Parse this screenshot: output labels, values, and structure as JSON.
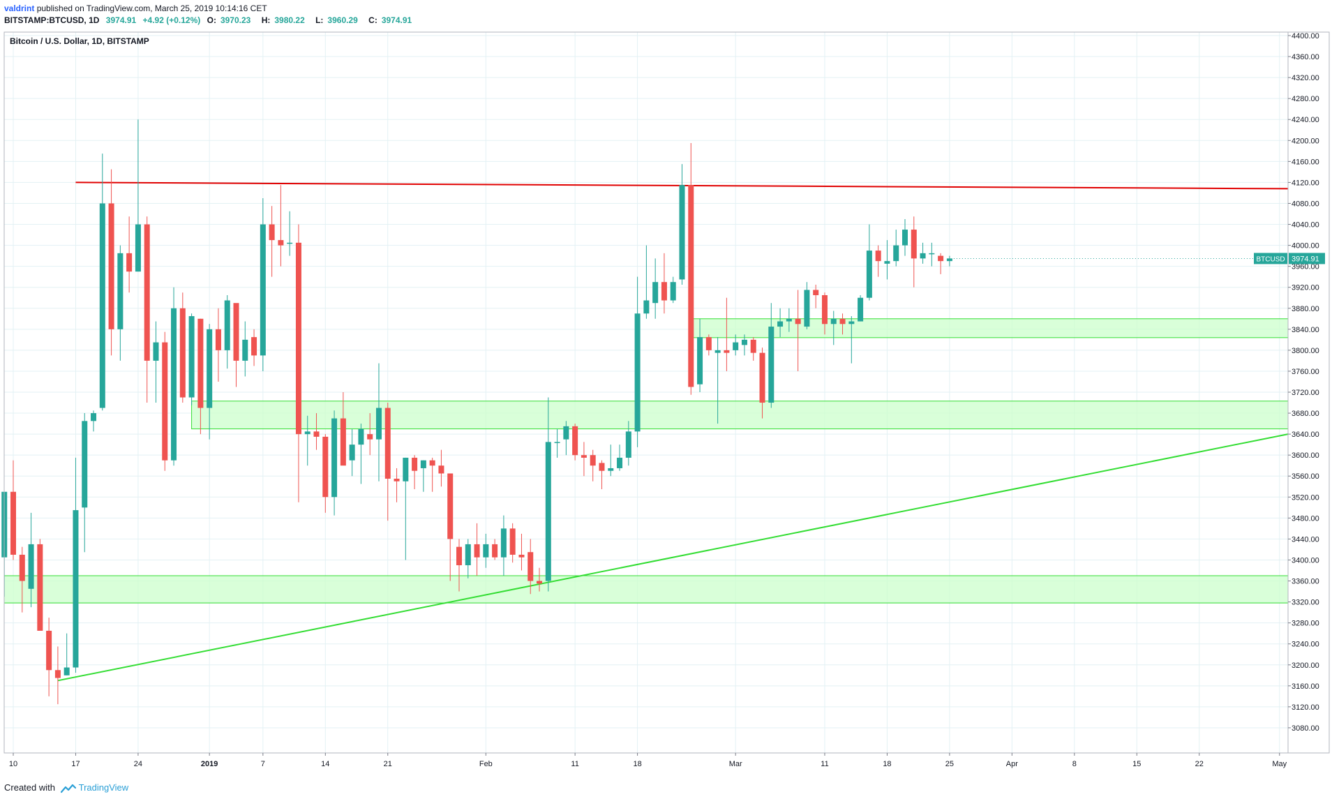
{
  "header": {
    "author": "valdrint",
    "published_text": "published on TradingView.com, March 25, 2019 10:14:16 CET",
    "symbol": "BITSTAMP:BTCUSD, 1D",
    "last_price": "3974.91",
    "change": "+4.92 (+0.12%)",
    "o_label": "O:",
    "o_value": "3970.23",
    "h_label": "H:",
    "h_value": "3980.22",
    "l_label": "L:",
    "l_value": "3960.29",
    "c_label": "C:",
    "c_value": "3974.91"
  },
  "chart_data": {
    "type": "candlestick",
    "title": "Bitcoin / U.S. Dollar, 1D, BITSTAMP",
    "ylim": [
      3040,
      4410
    ],
    "y_ticks": [
      "4400.00",
      "4360.00",
      "4320.00",
      "4280.00",
      "4240.00",
      "4200.00",
      "4160.00",
      "4120.00",
      "4080.00",
      "4040.00",
      "4000.00",
      "3960.00",
      "3920.00",
      "3880.00",
      "3840.00",
      "3800.00",
      "3760.00",
      "3720.00",
      "3680.00",
      "3640.00",
      "3600.00",
      "3560.00",
      "3520.00",
      "3480.00",
      "3440.00",
      "3400.00",
      "3360.00",
      "3320.00",
      "3280.00",
      "3240.00",
      "3200.00",
      "3160.00",
      "3120.00",
      "3080.00"
    ],
    "x_ticks": [
      {
        "label": "10",
        "date": "2018-12-10"
      },
      {
        "label": "17",
        "date": "2018-12-17"
      },
      {
        "label": "24",
        "date": "2018-12-24"
      },
      {
        "label": "2019",
        "date": "2019-01-01"
      },
      {
        "label": "7",
        "date": "2019-01-07"
      },
      {
        "label": "14",
        "date": "2019-01-14"
      },
      {
        "label": "21",
        "date": "2019-01-21"
      },
      {
        "label": "Feb",
        "date": "2019-02-01"
      },
      {
        "label": "11",
        "date": "2019-02-11"
      },
      {
        "label": "18",
        "date": "2019-02-18"
      },
      {
        "label": "Mar",
        "date": "2019-03-01"
      },
      {
        "label": "11",
        "date": "2019-03-11"
      },
      {
        "label": "18",
        "date": "2019-03-18"
      },
      {
        "label": "25",
        "date": "2019-03-25"
      },
      {
        "label": "Apr",
        "date": "2019-04-01"
      },
      {
        "label": "8",
        "date": "2019-04-08"
      },
      {
        "label": "15",
        "date": "2019-04-15"
      },
      {
        "label": "22",
        "date": "2019-04-22"
      },
      {
        "label": "May",
        "date": "2019-05-01"
      }
    ],
    "grid": true,
    "last_price_label": "BTCUSD",
    "last_price_value": "3974.91",
    "candles": [
      {
        "date": "2018-12-09",
        "o": 3405,
        "h": 3525,
        "l": 3330,
        "c": 3530
      },
      {
        "date": "2018-12-10",
        "o": 3530,
        "h": 3590,
        "l": 3400,
        "c": 3410
      },
      {
        "date": "2018-12-11",
        "o": 3410,
        "h": 3425,
        "l": 3300,
        "c": 3360
      },
      {
        "date": "2018-12-12",
        "o": 3345,
        "h": 3490,
        "l": 3310,
        "c": 3430
      },
      {
        "date": "2018-12-13",
        "o": 3430,
        "h": 3440,
        "l": 3270,
        "c": 3265
      },
      {
        "date": "2018-12-14",
        "o": 3265,
        "h": 3290,
        "l": 3140,
        "c": 3190
      },
      {
        "date": "2018-12-15",
        "o": 3190,
        "h": 3235,
        "l": 3125,
        "c": 3175
      },
      {
        "date": "2018-12-16",
        "o": 3180,
        "h": 3260,
        "l": 3180,
        "c": 3195
      },
      {
        "date": "2018-12-17",
        "o": 3195,
        "h": 3595,
        "l": 3185,
        "c": 3495
      },
      {
        "date": "2018-12-18",
        "o": 3500,
        "h": 3680,
        "l": 3415,
        "c": 3665
      },
      {
        "date": "2018-12-19",
        "o": 3665,
        "h": 3685,
        "l": 3645,
        "c": 3680
      },
      {
        "date": "2018-12-20",
        "o": 3690,
        "h": 4175,
        "l": 3685,
        "c": 4080
      },
      {
        "date": "2018-12-21",
        "o": 4080,
        "h": 4145,
        "l": 3790,
        "c": 3840
      },
      {
        "date": "2018-12-22",
        "o": 3840,
        "h": 4000,
        "l": 3780,
        "c": 3985
      },
      {
        "date": "2018-12-23",
        "o": 3985,
        "h": 4055,
        "l": 3910,
        "c": 3950
      },
      {
        "date": "2018-12-24",
        "o": 3950,
        "h": 4240,
        "l": 3950,
        "c": 4040
      },
      {
        "date": "2018-12-25",
        "o": 4040,
        "h": 4055,
        "l": 3700,
        "c": 3780
      },
      {
        "date": "2018-12-26",
        "o": 3780,
        "h": 3855,
        "l": 3700,
        "c": 3815
      },
      {
        "date": "2018-12-27",
        "o": 3815,
        "h": 3835,
        "l": 3570,
        "c": 3590
      },
      {
        "date": "2018-12-28",
        "o": 3590,
        "h": 3920,
        "l": 3580,
        "c": 3880
      },
      {
        "date": "2018-12-29",
        "o": 3880,
        "h": 3910,
        "l": 3700,
        "c": 3710
      },
      {
        "date": "2018-12-30",
        "o": 3710,
        "h": 3870,
        "l": 3695,
        "c": 3865
      },
      {
        "date": "2018-12-31",
        "o": 3860,
        "h": 3860,
        "l": 3640,
        "c": 3690
      },
      {
        "date": "2019-01-01",
        "o": 3690,
        "h": 3850,
        "l": 3630,
        "c": 3840
      },
      {
        "date": "2019-01-02",
        "o": 3840,
        "h": 3880,
        "l": 3740,
        "c": 3800
      },
      {
        "date": "2019-01-03",
        "o": 3800,
        "h": 3905,
        "l": 3765,
        "c": 3895
      },
      {
        "date": "2019-01-04",
        "o": 3890,
        "h": 3885,
        "l": 3730,
        "c": 3780
      },
      {
        "date": "2019-01-05",
        "o": 3780,
        "h": 3855,
        "l": 3750,
        "c": 3820
      },
      {
        "date": "2019-01-06",
        "o": 3825,
        "h": 3840,
        "l": 3770,
        "c": 3790
      },
      {
        "date": "2019-01-07",
        "o": 3790,
        "h": 4090,
        "l": 3760,
        "c": 4040
      },
      {
        "date": "2019-01-08",
        "o": 4040,
        "h": 4075,
        "l": 3940,
        "c": 4010
      },
      {
        "date": "2019-01-09",
        "o": 4010,
        "h": 4115,
        "l": 3960,
        "c": 4000
      },
      {
        "date": "2019-01-10",
        "o": 4005,
        "h": 4065,
        "l": 3980,
        "c": 4005
      },
      {
        "date": "2019-01-11",
        "o": 4005,
        "h": 4040,
        "l": 3510,
        "c": 3640
      },
      {
        "date": "2019-01-12",
        "o": 3640,
        "h": 3675,
        "l": 3580,
        "c": 3645
      },
      {
        "date": "2019-01-13",
        "o": 3645,
        "h": 3680,
        "l": 3610,
        "c": 3635
      },
      {
        "date": "2019-01-14",
        "o": 3635,
        "h": 3640,
        "l": 3490,
        "c": 3520
      },
      {
        "date": "2019-01-15",
        "o": 3520,
        "h": 3685,
        "l": 3485,
        "c": 3670
      },
      {
        "date": "2019-01-16",
        "o": 3670,
        "h": 3720,
        "l": 3590,
        "c": 3580
      },
      {
        "date": "2019-01-17",
        "o": 3590,
        "h": 3650,
        "l": 3560,
        "c": 3620
      },
      {
        "date": "2019-01-18",
        "o": 3620,
        "h": 3660,
        "l": 3545,
        "c": 3650
      },
      {
        "date": "2019-01-19",
        "o": 3640,
        "h": 3680,
        "l": 3600,
        "c": 3630
      },
      {
        "date": "2019-01-20",
        "o": 3630,
        "h": 3775,
        "l": 3550,
        "c": 3690
      },
      {
        "date": "2019-01-21",
        "o": 3690,
        "h": 3700,
        "l": 3475,
        "c": 3555
      },
      {
        "date": "2019-01-22",
        "o": 3555,
        "h": 3575,
        "l": 3510,
        "c": 3550
      },
      {
        "date": "2019-01-23",
        "o": 3550,
        "h": 3595,
        "l": 3400,
        "c": 3595
      },
      {
        "date": "2019-01-24",
        "o": 3595,
        "h": 3600,
        "l": 3535,
        "c": 3570
      },
      {
        "date": "2019-01-25",
        "o": 3575,
        "h": 3590,
        "l": 3530,
        "c": 3590
      },
      {
        "date": "2019-01-26",
        "o": 3590,
        "h": 3595,
        "l": 3530,
        "c": 3580
      },
      {
        "date": "2019-01-27",
        "o": 3580,
        "h": 3610,
        "l": 3540,
        "c": 3565
      },
      {
        "date": "2019-01-28",
        "o": 3565,
        "h": 3565,
        "l": 3360,
        "c": 3440
      },
      {
        "date": "2019-01-29",
        "o": 3425,
        "h": 3440,
        "l": 3340,
        "c": 3390
      },
      {
        "date": "2019-01-30",
        "o": 3390,
        "h": 3440,
        "l": 3365,
        "c": 3430
      },
      {
        "date": "2019-01-31",
        "o": 3430,
        "h": 3470,
        "l": 3370,
        "c": 3405
      },
      {
        "date": "2019-02-01",
        "o": 3405,
        "h": 3450,
        "l": 3385,
        "c": 3430
      },
      {
        "date": "2019-02-02",
        "o": 3430,
        "h": 3440,
        "l": 3400,
        "c": 3405
      },
      {
        "date": "2019-02-03",
        "o": 3405,
        "h": 3485,
        "l": 3370,
        "c": 3460
      },
      {
        "date": "2019-02-04",
        "o": 3460,
        "h": 3470,
        "l": 3395,
        "c": 3410
      },
      {
        "date": "2019-02-05",
        "o": 3410,
        "h": 3450,
        "l": 3380,
        "c": 3405
      },
      {
        "date": "2019-02-06",
        "o": 3415,
        "h": 3440,
        "l": 3335,
        "c": 3360
      },
      {
        "date": "2019-02-07",
        "o": 3360,
        "h": 3385,
        "l": 3340,
        "c": 3355
      },
      {
        "date": "2019-02-08",
        "o": 3360,
        "h": 3710,
        "l": 3340,
        "c": 3625
      },
      {
        "date": "2019-02-09",
        "o": 3625,
        "h": 3650,
        "l": 3595,
        "c": 3625
      },
      {
        "date": "2019-02-10",
        "o": 3630,
        "h": 3665,
        "l": 3600,
        "c": 3655
      },
      {
        "date": "2019-02-11",
        "o": 3655,
        "h": 3660,
        "l": 3590,
        "c": 3600
      },
      {
        "date": "2019-02-12",
        "o": 3600,
        "h": 3625,
        "l": 3560,
        "c": 3595
      },
      {
        "date": "2019-02-13",
        "o": 3600,
        "h": 3610,
        "l": 3550,
        "c": 3580
      },
      {
        "date": "2019-02-14",
        "o": 3585,
        "h": 3590,
        "l": 3535,
        "c": 3570
      },
      {
        "date": "2019-02-15",
        "o": 3570,
        "h": 3620,
        "l": 3560,
        "c": 3575
      },
      {
        "date": "2019-02-16",
        "o": 3575,
        "h": 3620,
        "l": 3570,
        "c": 3595
      },
      {
        "date": "2019-02-17",
        "o": 3595,
        "h": 3665,
        "l": 3580,
        "c": 3645
      },
      {
        "date": "2019-02-18",
        "o": 3645,
        "h": 3940,
        "l": 3615,
        "c": 3870
      },
      {
        "date": "2019-02-19",
        "o": 3870,
        "h": 4000,
        "l": 3860,
        "c": 3895
      },
      {
        "date": "2019-02-20",
        "o": 3890,
        "h": 3975,
        "l": 3860,
        "c": 3930
      },
      {
        "date": "2019-02-21",
        "o": 3930,
        "h": 3985,
        "l": 3870,
        "c": 3895
      },
      {
        "date": "2019-02-22",
        "o": 3895,
        "h": 3940,
        "l": 3890,
        "c": 3930
      },
      {
        "date": "2019-02-23",
        "o": 3935,
        "h": 4155,
        "l": 3925,
        "c": 4115
      },
      {
        "date": "2019-02-24",
        "o": 4115,
        "h": 4195,
        "l": 3715,
        "c": 3730
      },
      {
        "date": "2019-02-25",
        "o": 3735,
        "h": 3860,
        "l": 3720,
        "c": 3825
      },
      {
        "date": "2019-02-26",
        "o": 3825,
        "h": 3830,
        "l": 3790,
        "c": 3800
      },
      {
        "date": "2019-02-27",
        "o": 3795,
        "h": 3825,
        "l": 3660,
        "c": 3800
      },
      {
        "date": "2019-02-28",
        "o": 3800,
        "h": 3900,
        "l": 3760,
        "c": 3795
      },
      {
        "date": "2019-03-01",
        "o": 3800,
        "h": 3830,
        "l": 3790,
        "c": 3815
      },
      {
        "date": "2019-03-02",
        "o": 3810,
        "h": 3830,
        "l": 3790,
        "c": 3820
      },
      {
        "date": "2019-03-03",
        "o": 3820,
        "h": 3825,
        "l": 3780,
        "c": 3795
      },
      {
        "date": "2019-03-04",
        "o": 3795,
        "h": 3805,
        "l": 3670,
        "c": 3700
      },
      {
        "date": "2019-03-05",
        "o": 3700,
        "h": 3890,
        "l": 3690,
        "c": 3845
      },
      {
        "date": "2019-03-06",
        "o": 3845,
        "h": 3880,
        "l": 3825,
        "c": 3855
      },
      {
        "date": "2019-03-07",
        "o": 3855,
        "h": 3880,
        "l": 3835,
        "c": 3860
      },
      {
        "date": "2019-03-08",
        "o": 3860,
        "h": 3915,
        "l": 3760,
        "c": 3850
      },
      {
        "date": "2019-03-09",
        "o": 3845,
        "h": 3930,
        "l": 3840,
        "c": 3915
      },
      {
        "date": "2019-03-10",
        "o": 3915,
        "h": 3925,
        "l": 3880,
        "c": 3905
      },
      {
        "date": "2019-03-11",
        "o": 3905,
        "h": 3910,
        "l": 3830,
        "c": 3850
      },
      {
        "date": "2019-03-12",
        "o": 3850,
        "h": 3875,
        "l": 3810,
        "c": 3860
      },
      {
        "date": "2019-03-13",
        "o": 3860,
        "h": 3870,
        "l": 3830,
        "c": 3850
      },
      {
        "date": "2019-03-14",
        "o": 3850,
        "h": 3865,
        "l": 3775,
        "c": 3855
      },
      {
        "date": "2019-03-15",
        "o": 3855,
        "h": 3905,
        "l": 3855,
        "c": 3900
      },
      {
        "date": "2019-03-16",
        "o": 3900,
        "h": 4040,
        "l": 3895,
        "c": 3990
      },
      {
        "date": "2019-03-17",
        "o": 3990,
        "h": 4000,
        "l": 3940,
        "c": 3970
      },
      {
        "date": "2019-03-18",
        "o": 3965,
        "h": 4010,
        "l": 3935,
        "c": 3970
      },
      {
        "date": "2019-03-19",
        "o": 3970,
        "h": 4030,
        "l": 3960,
        "c": 4000
      },
      {
        "date": "2019-03-20",
        "o": 4000,
        "h": 4050,
        "l": 3980,
        "c": 4030
      },
      {
        "date": "2019-03-21",
        "o": 4030,
        "h": 4055,
        "l": 3920,
        "c": 3975
      },
      {
        "date": "2019-03-22",
        "o": 3975,
        "h": 4005,
        "l": 3965,
        "c": 3985
      },
      {
        "date": "2019-03-23",
        "o": 3985,
        "h": 4005,
        "l": 3960,
        "c": 3985
      },
      {
        "date": "2019-03-24",
        "o": 3980,
        "h": 3985,
        "l": 3945,
        "c": 3970
      },
      {
        "date": "2019-03-25",
        "o": 3970,
        "h": 3980,
        "l": 3960,
        "c": 3975
      }
    ],
    "annotations": {
      "resistance_line": {
        "color": "#e00000",
        "from": {
          "date": "2018-12-17",
          "price": 4120
        },
        "to": {
          "date": "2019-05-06",
          "price": 4108
        }
      },
      "support_trendline": {
        "color": "#33dd33",
        "from": {
          "date": "2018-12-15",
          "price": 3170
        },
        "to": {
          "date": "2019-05-06",
          "price": 3640
        }
      },
      "zones": [
        {
          "from_date": "2018-12-08",
          "to_date": "2019-05-06",
          "low": 3318,
          "high": 3370
        },
        {
          "from_date": "2018-12-30",
          "to_date": "2019-05-06",
          "low": 3650,
          "high": 3703
        },
        {
          "from_date": "2019-02-24",
          "to_date": "2019-05-06",
          "low": 3824,
          "high": 3860
        }
      ]
    }
  },
  "colors": {
    "up": "#26a69a",
    "down": "#ef5350",
    "grid": "#e3f1f4",
    "axis_text": "#131722",
    "zone_fill": "#ccffcc",
    "zone_stroke": "#33dd33",
    "price_tag": "#26a69a"
  },
  "footer": {
    "created_with": "Created with",
    "brand": "TradingView"
  }
}
